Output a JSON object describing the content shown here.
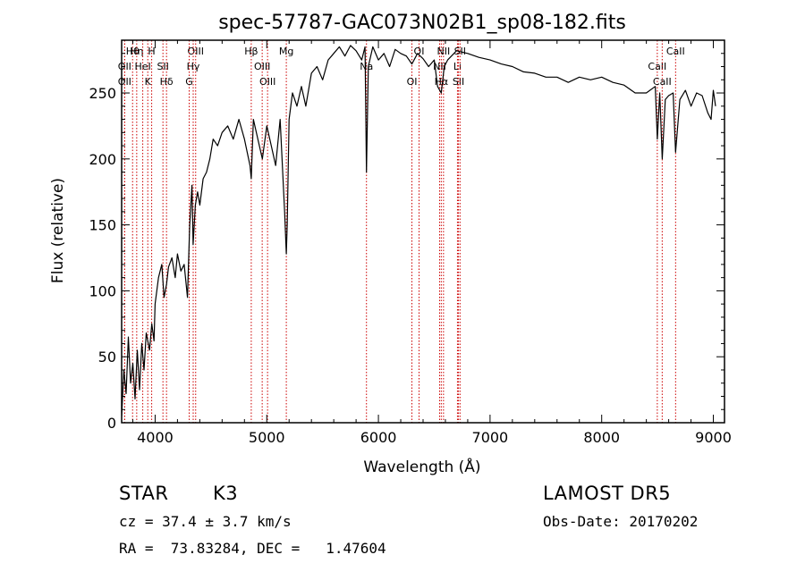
{
  "chart_data": {
    "type": "line",
    "title": "spec-57787-GAC073N02B1_sp08-182.fits",
    "xlabel": "Wavelength (Å)",
    "ylabel": "Flux (relative)",
    "xlim": [
      3700,
      9100
    ],
    "ylim": [
      0,
      290
    ],
    "xticks": [
      4000,
      5000,
      6000,
      7000,
      8000,
      9000
    ],
    "xtick_labels": [
      "4000",
      "5000",
      "6000",
      "7000",
      "8000",
      "9000"
    ],
    "yticks": [
      0,
      50,
      100,
      150,
      200,
      250
    ],
    "ytick_labels": [
      "0",
      "50",
      "100",
      "150",
      "200",
      "250"
    ],
    "grid": false,
    "series": [
      {
        "x": [
          3700,
          3720,
          3740,
          3760,
          3780,
          3800,
          3820,
          3840,
          3860,
          3880,
          3900,
          3920,
          3950,
          3970,
          3990,
          4000,
          4030,
          4060,
          4080,
          4102,
          4120,
          4150,
          4180,
          4200,
          4230,
          4260,
          4290,
          4310,
          4330,
          4340,
          4360,
          4380,
          4400,
          4430,
          4460,
          4490,
          4520,
          4560,
          4600,
          4650,
          4700,
          4750,
          4800,
          4850,
          4861,
          4880,
          4920,
          4960,
          5000,
          5040,
          5080,
          5120,
          5160,
          5175,
          5183,
          5200,
          5230,
          5270,
          5310,
          5350,
          5400,
          5450,
          5500,
          5550,
          5600,
          5650,
          5700,
          5750,
          5800,
          5850,
          5880,
          5893,
          5910,
          5950,
          6000,
          6050,
          6100,
          6150,
          6200,
          6250,
          6300,
          6350,
          6400,
          6450,
          6500,
          6530,
          6563,
          6590,
          6620,
          6700,
          6800,
          6900,
          7000,
          7100,
          7200,
          7300,
          7400,
          7500,
          7600,
          7700,
          7800,
          7900,
          8000,
          8100,
          8200,
          8300,
          8400,
          8480,
          8498,
          8520,
          8542,
          8570,
          8600,
          8640,
          8662,
          8700,
          8750,
          8800,
          8850,
          8900,
          8950,
          8980,
          9000,
          9020
        ],
        "y": [
          5,
          40,
          22,
          65,
          30,
          45,
          18,
          55,
          25,
          60,
          40,
          68,
          55,
          75,
          62,
          90,
          110,
          120,
          95,
          105,
          118,
          125,
          110,
          128,
          115,
          120,
          95,
          150,
          180,
          135,
          165,
          175,
          165,
          185,
          190,
          200,
          215,
          210,
          220,
          225,
          215,
          230,
          215,
          195,
          185,
          230,
          215,
          200,
          225,
          210,
          195,
          230,
          160,
          128,
          150,
          230,
          250,
          240,
          255,
          240,
          265,
          270,
          260,
          275,
          280,
          285,
          278,
          286,
          282,
          275,
          285,
          190,
          270,
          285,
          275,
          280,
          270,
          283,
          280,
          278,
          272,
          280,
          276,
          270,
          275,
          255,
          250,
          270,
          275,
          282,
          280,
          277,
          275,
          272,
          270,
          266,
          265,
          262,
          262,
          258,
          262,
          260,
          262,
          258,
          256,
          250,
          250,
          255,
          215,
          250,
          200,
          245,
          248,
          250,
          205,
          245,
          252,
          240,
          250,
          248,
          235,
          230,
          252,
          240
        ]
      }
    ],
    "lines": [
      {
        "label": "Hθ",
        "x": 3798
      },
      {
        "label": "OII",
        "x": 3727
      },
      {
        "label": "OII",
        "x": 3727
      },
      {
        "label": "Hη",
        "x": 3835
      },
      {
        "label": "HeI",
        "x": 3889
      },
      {
        "label": "K",
        "x": 3934
      },
      {
        "label": "H",
        "x": 3969
      },
      {
        "label": "SII",
        "x": 4070
      },
      {
        "label": "Hδ",
        "x": 4102
      },
      {
        "label": "OIII",
        "x": 4363
      },
      {
        "label": "Hγ",
        "x": 4341
      },
      {
        "label": "G",
        "x": 4305
      },
      {
        "label": "Hβ",
        "x": 4861
      },
      {
        "label": "OIII",
        "x": 4959
      },
      {
        "label": "OIII",
        "x": 5007
      },
      {
        "label": "Mg",
        "x": 5175
      },
      {
        "label": "Na",
        "x": 5893
      },
      {
        "label": "OI",
        "x": 6300
      },
      {
        "label": "OI",
        "x": 6364
      },
      {
        "label": "NII",
        "x": 6548
      },
      {
        "label": "Hα",
        "x": 6563
      },
      {
        "label": "NII",
        "x": 6583
      },
      {
        "label": "Li",
        "x": 6708
      },
      {
        "label": "SII",
        "x": 6717
      },
      {
        "label": "SII",
        "x": 6731
      },
      {
        "label": "CaII",
        "x": 8498
      },
      {
        "label": "CaII",
        "x": 8542
      },
      {
        "label": "CaII",
        "x": 8662
      }
    ],
    "colors": {
      "spectrum": "#000000",
      "lines": "#cc0000",
      "axes": "#000000"
    }
  },
  "info": {
    "class_label": "STAR",
    "subclass": "K3",
    "survey": "LAMOST DR5",
    "cz": "cz = 37.4 ± 3.7 km/s",
    "obs_date": "Obs-Date: 20170202",
    "coords": "RA =  73.83284, DEC =   1.47604"
  }
}
